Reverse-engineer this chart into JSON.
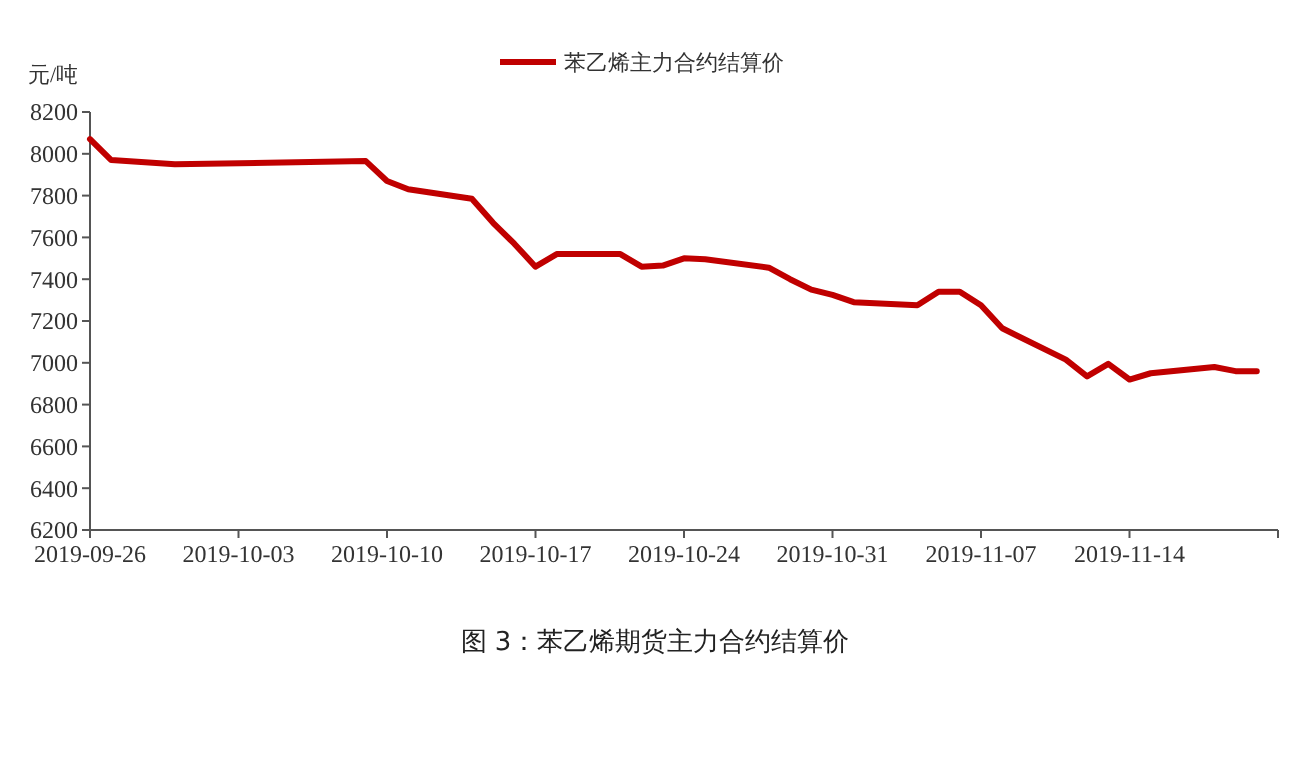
{
  "chart_data": {
    "type": "line",
    "title": "图 3：苯乙烯期货主力合约结算价",
    "ylabel": "元/吨",
    "legend": "top",
    "series": [
      {
        "name": "苯乙烯主力合约结算价",
        "color": "#c00000",
        "x": [
          "2019-09-26",
          "2019-09-27",
          "2019-09-30",
          "2019-10-09",
          "2019-10-10",
          "2019-10-11",
          "2019-10-14",
          "2019-10-15",
          "2019-10-16",
          "2019-10-17",
          "2019-10-18",
          "2019-10-21",
          "2019-10-22",
          "2019-10-23",
          "2019-10-24",
          "2019-10-25",
          "2019-10-28",
          "2019-10-29",
          "2019-10-30",
          "2019-10-31",
          "2019-11-01",
          "2019-11-04",
          "2019-11-05",
          "2019-11-06",
          "2019-11-07",
          "2019-11-08",
          "2019-11-11",
          "2019-11-12",
          "2019-11-13",
          "2019-11-14",
          "2019-11-15",
          "2019-11-18",
          "2019-11-19",
          "2019-11-20"
        ],
        "values": [
          8070,
          7970,
          7950,
          7965,
          7870,
          7830,
          7785,
          7670,
          7570,
          7460,
          7520,
          7520,
          7460,
          7465,
          7500,
          7495,
          7455,
          7400,
          7350,
          7325,
          7290,
          7275,
          7340,
          7340,
          7275,
          7165,
          7015,
          6935,
          6995,
          6920,
          6950,
          6980,
          6960,
          6960
        ]
      }
    ],
    "xlim": [
      "2019-09-26",
      "2019-11-21"
    ],
    "xticks": [
      "2019-09-26",
      "2019-10-03",
      "2019-10-10",
      "2019-10-17",
      "2019-10-24",
      "2019-10-31",
      "2019-11-07",
      "2019-11-14"
    ],
    "ylim": [
      6200,
      8200
    ],
    "yticks": [
      6200,
      6400,
      6600,
      6800,
      7000,
      7200,
      7400,
      7600,
      7800,
      8000,
      8200
    ]
  }
}
